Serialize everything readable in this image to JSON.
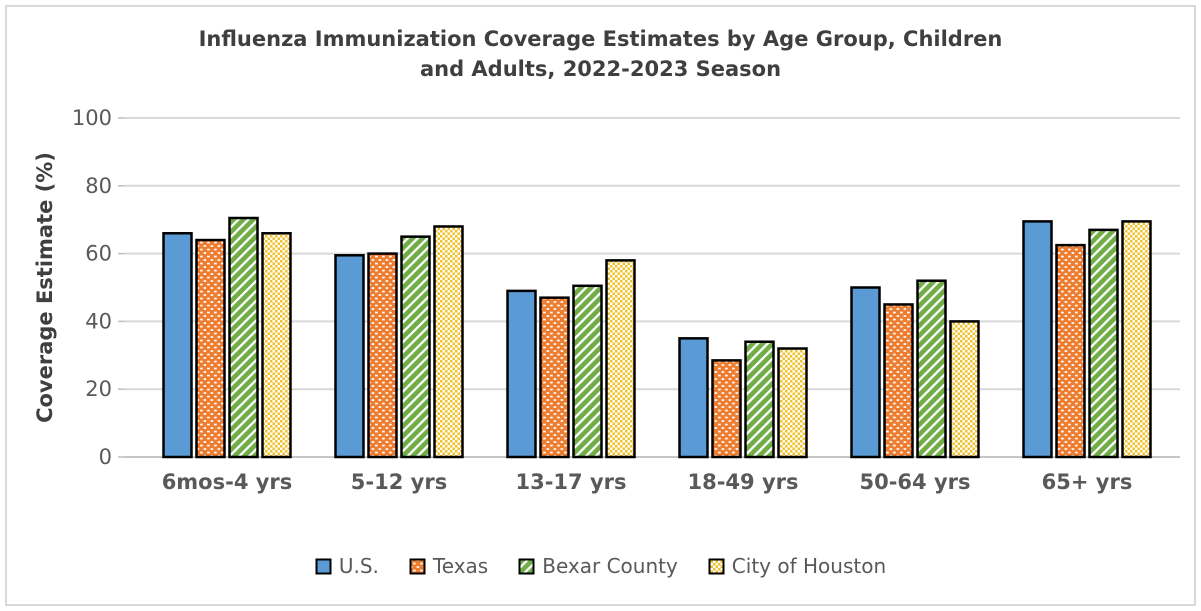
{
  "header": {
    "title_line1": "Influenza Immunization Coverage Estimates by Age Group, Children",
    "title_line2": "and Adults, 2022-2023 Season"
  },
  "chart_data": {
    "type": "bar",
    "title": "Influenza Immunization Coverage Estimates by Age Group, Children and Adults, 2022-2023 Season",
    "xlabel": "",
    "ylabel": "Coverage Estimate (%)",
    "ylim": [
      0,
      100
    ],
    "ytick_step": 20,
    "ytick_labels": [
      "0",
      "20",
      "40",
      "60",
      "80",
      "100"
    ],
    "grid": true,
    "legend_position": "bottom",
    "categories": [
      "6mos-4 yrs",
      "5-12 yrs",
      "13-17 yrs",
      "18-49 yrs",
      "50-64 yrs",
      "65+ yrs"
    ],
    "series": [
      {
        "name": "U.S.",
        "color": "#5B9BD5",
        "pattern": "solid",
        "values": [
          66,
          59.5,
          49,
          35,
          50,
          69.5
        ]
      },
      {
        "name": "Texas",
        "color": "#ED7D31",
        "pattern": "dots",
        "values": [
          64,
          60,
          47,
          28.5,
          45,
          62.5
        ]
      },
      {
        "name": "Bexar County",
        "color": "#70AD47",
        "pattern": "diagonal",
        "values": [
          70.5,
          65,
          50.5,
          34,
          52,
          67
        ]
      },
      {
        "name": "City of Houston",
        "color": "#F2C12E",
        "pattern": "checker",
        "values": [
          66,
          68,
          58,
          32,
          40,
          69.5
        ]
      }
    ],
    "style": {
      "bar_border_color": "#000000",
      "gridline_color": "#D9D9D9",
      "baseline_color": "#C6C6C6",
      "tick_color": "#BFBFBF",
      "axis_text_color": "#595959",
      "axis_title_color": "#3F3F3F"
    }
  }
}
